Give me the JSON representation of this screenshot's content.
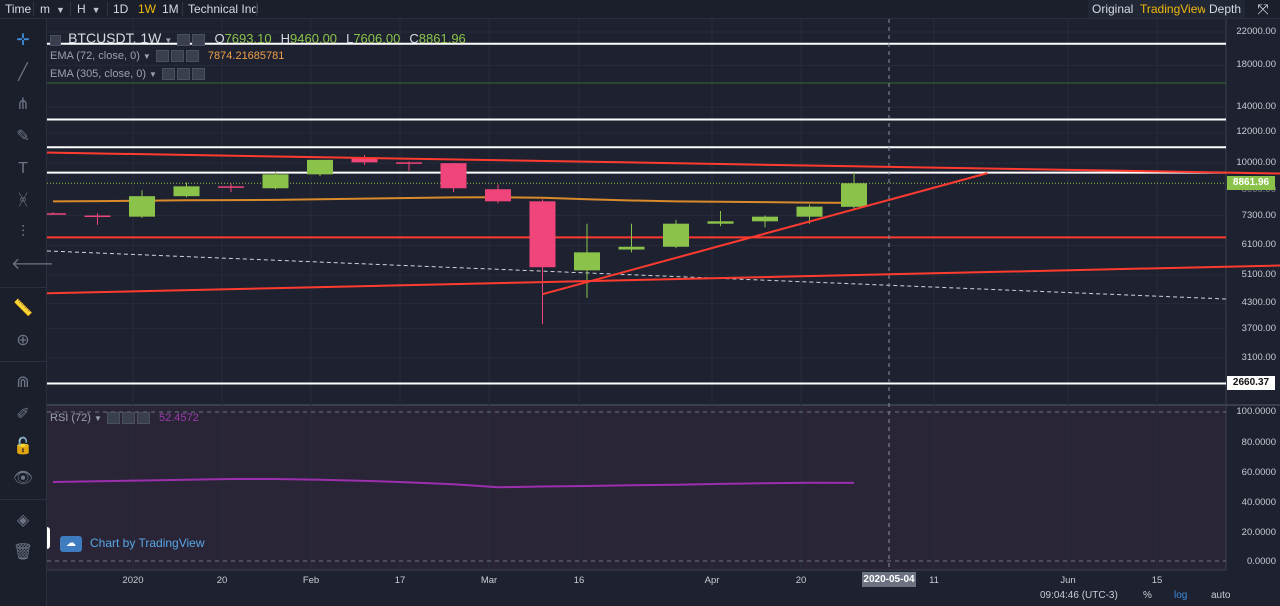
{
  "topbar": {
    "time_label": "Time",
    "minute_label": "m",
    "hour_label": "H",
    "day_label": "1D",
    "week_label": "1W",
    "month_label": "1M",
    "indicators_label": "Technical Ind",
    "view_original": "Original",
    "view_tradingview": "TradingView",
    "view_depth": "Depth",
    "accent": "#f0b90b"
  },
  "legend": {
    "symbol": "BTCUSDT, 1W",
    "open_label": "O",
    "open": "7693.10",
    "high_label": "H",
    "high": "9460.00",
    "low_label": "L",
    "low": "7606.00",
    "close_label": "C",
    "close": "8861.96",
    "ema1_label": "EMA (72, close, 0)",
    "ema1_value": "7874.21685781",
    "ema2_label": "EMA (305, close, 0)",
    "rsi_label": "RSI (72)",
    "rsi_value": "52.4572"
  },
  "price_axis": [
    "22000.00",
    "18000.00",
    "14000.00",
    "12000.00",
    "10000.00",
    "8000.00",
    "7300.00",
    "6100.00",
    "5100.00",
    "4300.00",
    "3700.00",
    "3100.00"
  ],
  "price_tags": {
    "current": "8861.96",
    "level": "2660.37"
  },
  "rsi_axis": [
    "100.0000",
    "80.0000",
    "60.0000",
    "40.0000",
    "20.0000",
    "0.0000"
  ],
  "time_axis": [
    "2020",
    "20",
    "Feb",
    "17",
    "Mar",
    "16",
    "Apr",
    "20",
    "11",
    "Jun",
    "15"
  ],
  "crosshair_date": "2020-05-04",
  "footer": {
    "clock": "09:04:46 (UTC-3)",
    "percent": "%",
    "log": "log",
    "auto": "auto"
  },
  "branding": {
    "text": "Chart by TradingView"
  },
  "colors": {
    "up": "#8bc34a",
    "down": "#f0457a",
    "trend": "#ff3b30",
    "ema72": "#d98a2b",
    "rsi": "#9b2fae"
  },
  "chart_data": {
    "type": "candlestick",
    "scale": "log",
    "interval": "1W",
    "candles": [
      {
        "o": 7400,
        "h": 7450,
        "l": 7350,
        "c": 7380
      },
      {
        "o": 7300,
        "h": 7400,
        "l": 6900,
        "c": 7250
      },
      {
        "o": 7250,
        "h": 8500,
        "l": 7200,
        "c": 8200
      },
      {
        "o": 8200,
        "h": 8900,
        "l": 8150,
        "c": 8700
      },
      {
        "o": 8700,
        "h": 8850,
        "l": 8400,
        "c": 8650
      },
      {
        "o": 8600,
        "h": 9500,
        "l": 8550,
        "c": 9350
      },
      {
        "o": 9350,
        "h": 10200,
        "l": 9250,
        "c": 10200
      },
      {
        "o": 10300,
        "h": 10500,
        "l": 9900,
        "c": 10050
      },
      {
        "o": 10050,
        "h": 10100,
        "l": 9550,
        "c": 10000
      },
      {
        "o": 10000,
        "h": 10000,
        "l": 8400,
        "c": 8600
      },
      {
        "o": 8550,
        "h": 8800,
        "l": 7850,
        "c": 7950
      },
      {
        "o": 7950,
        "h": 8050,
        "l": 3800,
        "c": 5350
      },
      {
        "o": 5250,
        "h": 6950,
        "l": 4450,
        "c": 5850
      },
      {
        "o": 5950,
        "h": 6950,
        "l": 5850,
        "c": 6050
      },
      {
        "o": 6050,
        "h": 7100,
        "l": 6000,
        "c": 6950
      },
      {
        "o": 6950,
        "h": 7500,
        "l": 6850,
        "c": 7050
      },
      {
        "o": 7050,
        "h": 7300,
        "l": 6800,
        "c": 7250
      },
      {
        "o": 7250,
        "h": 7800,
        "l": 6950,
        "c": 7700
      },
      {
        "o": 7693.1,
        "h": 9460,
        "l": 7606,
        "c": 8861.96
      }
    ],
    "ema72": [
      7950,
      7960,
      7980,
      8000,
      8010,
      8020,
      8050,
      8080,
      8110,
      8140,
      8150,
      8120,
      8050,
      7990,
      7950,
      7930,
      7910,
      7890,
      7874.22
    ],
    "rsi": [
      53,
      53.5,
      54,
      54.5,
      55,
      55,
      54.5,
      53.8,
      52.8,
      51.5,
      49.5,
      50,
      50.3,
      50.8,
      51.2,
      51.8,
      52.2,
      52.5,
      52.46
    ],
    "horizontal_levels": [
      20500,
      13000,
      11000,
      9450,
      6400,
      2660.37
    ],
    "dashed_level": 8861.96,
    "trendlines": [
      {
        "from_week": -1,
        "from_price": 10700,
        "to_week": 28,
        "to_price": 9380
      },
      {
        "from_week": -1,
        "from_price": 4550,
        "to_week": 28,
        "to_price": 5420
      },
      {
        "from_week": 11,
        "from_price": 4550,
        "to_week": 21,
        "to_price": 9420
      }
    ]
  }
}
